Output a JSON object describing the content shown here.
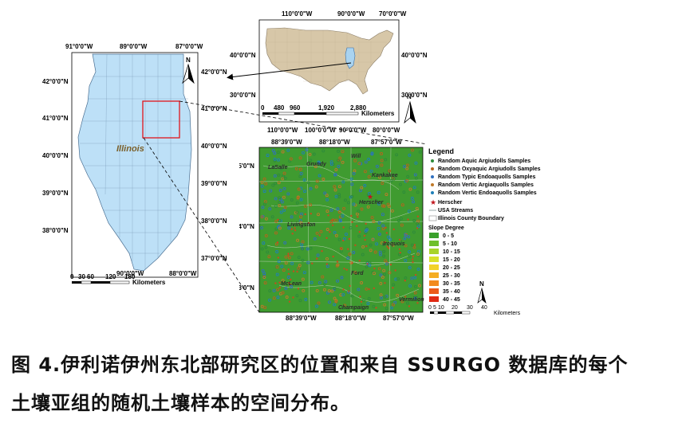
{
  "usa_map": {
    "top_labels": [
      "110°0'0\"W",
      "90°0'0\"W",
      "70°0'0\"W"
    ],
    "bottom_labels": [
      "110°0'0\"W",
      "100°0'0\"W",
      "90°0'0\"W",
      "80°0'0\"W"
    ],
    "left_labels": [
      "40°0'0\"N",
      "30°0'0\"N"
    ],
    "right_labels": [
      "40°0'0\"N",
      "30°0'0\"N"
    ],
    "scale_values": [
      "0",
      "480",
      "960",
      "1,920",
      "2,880"
    ],
    "scale_unit": "Kilometers",
    "north": "N"
  },
  "illinois_map": {
    "state_label": "Illinois",
    "top_labels": [
      "91°0'0\"W",
      "89°0'0\"W",
      "87°0'0\"W"
    ],
    "bottom_labels": [
      "90°0'0\"W",
      "88°0'0\"W"
    ],
    "left_labels": [
      "42°0'0\"N",
      "41°0'0\"N",
      "40°0'0\"N",
      "39°0'0\"N",
      "38°0'0\"N"
    ],
    "right_labels": [
      "42°0'0\"N",
      "41°0'0\"N",
      "40°0'0\"N",
      "39°0'0\"N",
      "38°0'0\"N",
      "37°0'0\"N"
    ],
    "scale_values": [
      "0",
      "30",
      "60",
      "120",
      "180"
    ],
    "scale_unit": "Kilometers",
    "north": "N"
  },
  "detail_map": {
    "top_labels": [
      "88°39'0\"W",
      "88°18'0\"W",
      "87°57'0\"W"
    ],
    "bottom_labels": [
      "88°39'0\"W",
      "88°18'0\"W",
      "87°57'0\"W"
    ],
    "left_labels": [
      "41°15'0\"N",
      "40°54'0\"N",
      "40°33'0\"N"
    ],
    "county_labels": [
      "LaSalle",
      "Grundy",
      "Will",
      "Kankakee",
      "Herscher",
      "Livingston",
      "Iroquois",
      "Ford",
      "McLean",
      "Champaign",
      "Vermilion"
    ],
    "scale_values": [
      "0",
      "5",
      "10",
      "20",
      "30",
      "40"
    ],
    "scale_unit": "Kilometers",
    "north": "N"
  },
  "legend": {
    "title": "Legend",
    "samples": [
      {
        "label": "Random Aquic Argiudolls Samples",
        "color": "#2e8b3a"
      },
      {
        "label": "Random Oxyaquic Argiudolls Samples",
        "color": "#b5651d"
      },
      {
        "label": "Random Typic Endoaquolls Samples",
        "color": "#2f6fbf"
      },
      {
        "label": "Random Vertic Argiaquolls Samples",
        "color": "#c07a2a"
      },
      {
        "label": "Random Vertic Endoaquolls Samples",
        "color": "#1f7fb8"
      }
    ],
    "herscher": "Herscher",
    "streams": "USA Streams",
    "boundary": "Illinois County Boundary",
    "slope_title": "Slope Degree",
    "slope_classes": [
      {
        "label": "0 - 5",
        "color": "#3aa02c"
      },
      {
        "label": "5 - 10",
        "color": "#6fbf2a"
      },
      {
        "label": "10 - 15",
        "color": "#a8d42a"
      },
      {
        "label": "15 - 20",
        "color": "#d8e12a"
      },
      {
        "label": "20 - 25",
        "color": "#f2d22a"
      },
      {
        "label": "25 - 30",
        "color": "#f5ad22"
      },
      {
        "label": "30 - 35",
        "color": "#f28a1e"
      },
      {
        "label": "35 - 40",
        "color": "#ec5a19"
      },
      {
        "label": "40 - 45",
        "color": "#e02a14"
      }
    ]
  },
  "caption": {
    "line1": "图 4.伊利诺伊州东北部研究区的位置和来自 SSURGO 数据库的每个",
    "line2": "土壤亚组的随机土壤样本的空间分布。"
  }
}
